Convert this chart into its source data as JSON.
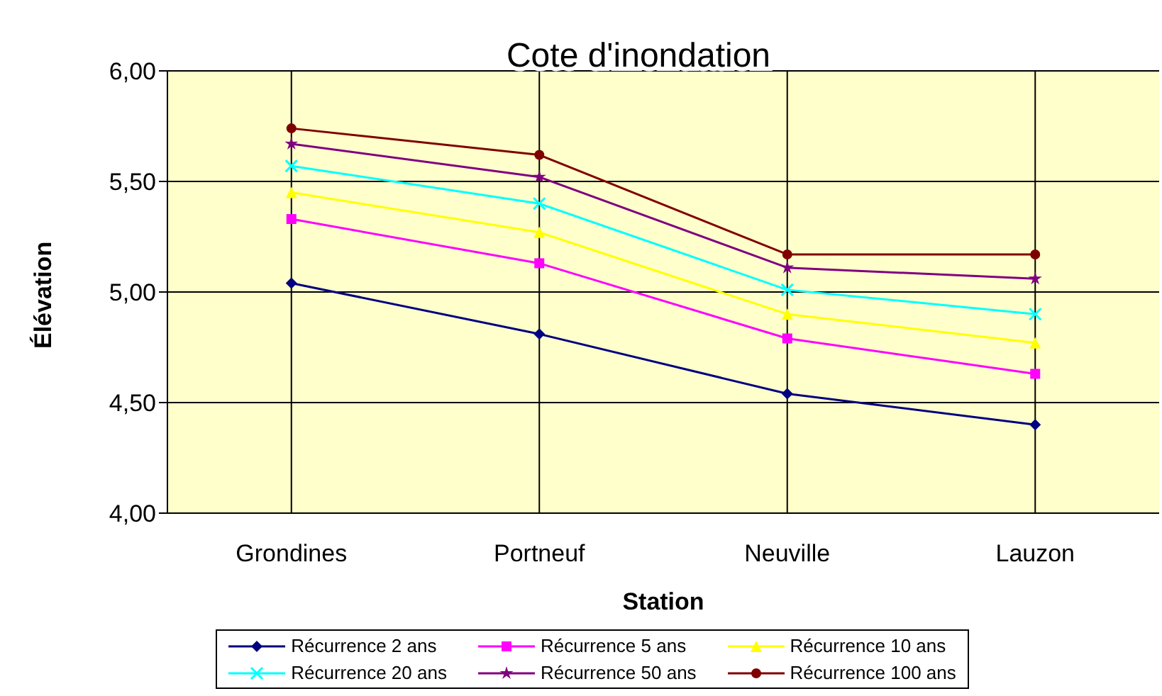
{
  "chart_data": {
    "type": "line",
    "title": "Cote d'inondation",
    "xlabel": "Station",
    "ylabel": "Élévation",
    "categories": [
      "Grondines",
      "Portneuf",
      "Neuville",
      "Lauzon"
    ],
    "series": [
      {
        "name": "Récurrence 2 ans",
        "color": "#000080",
        "marker": "diamond",
        "values": [
          5.04,
          4.81,
          4.54,
          4.4
        ]
      },
      {
        "name": "Récurrence 5 ans",
        "color": "#ff00ff",
        "marker": "square",
        "values": [
          5.33,
          5.13,
          4.79,
          4.63
        ]
      },
      {
        "name": "Récurrence 10 ans",
        "color": "#ffff00",
        "marker": "triangle",
        "values": [
          5.45,
          5.27,
          4.9,
          4.77
        ]
      },
      {
        "name": "Récurrence 20 ans",
        "color": "#00ffff",
        "marker": "cross",
        "values": [
          5.57,
          5.4,
          5.01,
          4.9
        ]
      },
      {
        "name": "Récurrence 50 ans",
        "color": "#800080",
        "marker": "star",
        "values": [
          5.67,
          5.52,
          5.11,
          5.06
        ]
      },
      {
        "name": "Récurrence 100 ans",
        "color": "#800000",
        "marker": "circle",
        "values": [
          5.74,
          5.62,
          5.17,
          5.17
        ]
      }
    ],
    "ylim": [
      4,
      6
    ],
    "yticks": [
      {
        "value": 4,
        "label": "4,00"
      },
      {
        "value": 4.5,
        "label": "4,50"
      },
      {
        "value": 5,
        "label": "5,00"
      },
      {
        "value": 5.5,
        "label": "5,50"
      },
      {
        "value": 6,
        "label": "6,00"
      }
    ],
    "grid": true,
    "legend": "bottom",
    "line_style": "solid"
  }
}
